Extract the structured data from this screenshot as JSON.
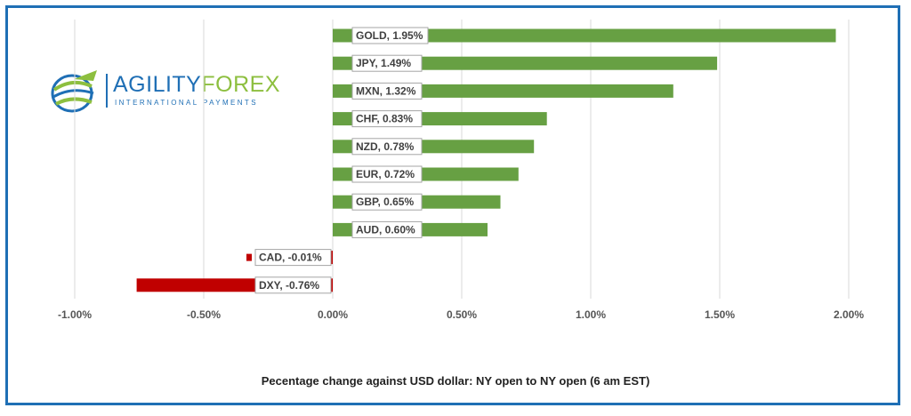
{
  "logo": {
    "brand_part1": "AGILITY",
    "brand_part2": "FOREX",
    "tagline": "INTERNATIONAL PAYMENTS"
  },
  "caption": "Pecentage change against USD dollar: NY open to  NY open  (6 am EST)",
  "colors": {
    "positive": "#67a043",
    "negative": "#c00000",
    "frame": "#1f6fb5"
  },
  "chart_data": {
    "type": "bar",
    "orientation": "horizontal",
    "title": "",
    "xlabel": "Pecentage change against USD dollar: NY open to  NY open  (6 am EST)",
    "ylabel": "",
    "xlim": [
      -1.0,
      2.0
    ],
    "grid": true,
    "legend": "none",
    "tick_values": [
      -1.0,
      -0.5,
      0.0,
      0.5,
      1.0,
      1.5,
      2.0
    ],
    "tick_labels": [
      "-1.00%",
      "-0.50%",
      "0.00%",
      "0.50%",
      "1.00%",
      "1.50%",
      "2.00%"
    ],
    "categories": [
      "GOLD",
      "JPY",
      "MXN",
      "CHF",
      "NZD",
      "EUR",
      "GBP",
      "AUD",
      "CAD",
      "DXY"
    ],
    "values": [
      1.95,
      1.49,
      1.32,
      0.83,
      0.78,
      0.72,
      0.65,
      0.6,
      -0.01,
      -0.76
    ],
    "data_labels": [
      "GOLD, 1.95%",
      "JPY, 1.49%",
      "MXN, 1.32%",
      "CHF, 0.83%",
      "NZD, 0.78%",
      "EUR, 0.72%",
      "GBP, 0.65%",
      "AUD, 0.60%",
      "CAD, -0.01%",
      "DXY, -0.76%"
    ]
  }
}
